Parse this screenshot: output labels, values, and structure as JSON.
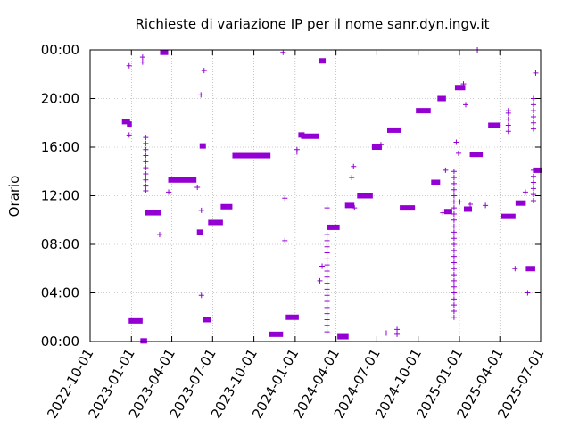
{
  "chart_data": {
    "type": "scatter",
    "title": "Richieste di variazione IP per il nome sanr.dyn.ingv.it",
    "ylabel": "Orario",
    "xlabel": "",
    "x_type": "date",
    "xlim": [
      "2022-10-01",
      "2025-07-01"
    ],
    "ylim": [
      0,
      24
    ],
    "x_ticks": [
      "2022-10-01",
      "2023-01-01",
      "2023-04-01",
      "2023-07-01",
      "2023-10-01",
      "2024-01-01",
      "2024-04-01",
      "2024-07-01",
      "2024-10-01",
      "2025-01-01",
      "2025-04-01",
      "2025-07-01"
    ],
    "y_ticks": [
      {
        "value": 0,
        "label": "00:00"
      },
      {
        "value": 4,
        "label": "04:00"
      },
      {
        "value": 8,
        "label": "08:00"
      },
      {
        "value": 12,
        "label": "12:00"
      },
      {
        "value": 16,
        "label": "16:00"
      },
      {
        "value": 20,
        "label": "20:00"
      },
      {
        "value": 24,
        "label": "00:00"
      }
    ],
    "grid": true,
    "marker": "plus",
    "color": "#9400d3",
    "segments": [
      {
        "x1": "2022-12-15",
        "x2": "2022-12-25",
        "y": 18.1
      },
      {
        "x1": "2022-12-26",
        "x2": "2022-12-29",
        "y": 17.9
      },
      {
        "x1": "2022-12-30",
        "x2": "2023-01-22",
        "y": 1.7
      },
      {
        "x1": "2023-01-25",
        "x2": "2023-02-01",
        "y": 0.05
      },
      {
        "x1": "2023-02-05",
        "x2": "2023-03-05",
        "y": 10.6
      },
      {
        "x1": "2023-03-10",
        "x2": "2023-03-20",
        "y": 23.8
      },
      {
        "x1": "2023-03-28",
        "x2": "2023-05-22",
        "y": 13.3
      },
      {
        "x1": "2023-05-31",
        "x2": "2023-06-05",
        "y": 9.0
      },
      {
        "x1": "2023-06-06",
        "x2": "2023-06-12",
        "y": 16.1
      },
      {
        "x1": "2023-06-14",
        "x2": "2023-06-24",
        "y": 1.8
      },
      {
        "x1": "2023-06-25",
        "x2": "2023-07-20",
        "y": 9.8
      },
      {
        "x1": "2023-07-23",
        "x2": "2023-08-10",
        "y": 11.1
      },
      {
        "x1": "2023-08-18",
        "x2": "2023-11-03",
        "y": 15.3
      },
      {
        "x1": "2023-11-08",
        "x2": "2023-12-01",
        "y": 0.6
      },
      {
        "x1": "2023-12-15",
        "x2": "2024-01-05",
        "y": 2.0
      },
      {
        "x1": "2024-01-12",
        "x2": "2024-01-18",
        "y": 17.0
      },
      {
        "x1": "2024-01-18",
        "x2": "2024-02-20",
        "y": 16.9
      },
      {
        "x1": "2024-02-27",
        "x2": "2024-03-05",
        "y": 23.1
      },
      {
        "x1": "2024-03-15",
        "x2": "2024-04-05",
        "y": 9.4
      },
      {
        "x1": "2024-04-08",
        "x2": "2024-04-25",
        "y": 0.4
      },
      {
        "x1": "2024-04-25",
        "x2": "2024-05-08",
        "y": 11.2
      },
      {
        "x1": "2024-05-22",
        "x2": "2024-06-18",
        "y": 12.0
      },
      {
        "x1": "2024-06-24",
        "x2": "2024-07-08",
        "y": 16.0
      },
      {
        "x1": "2024-07-28",
        "x2": "2024-08-20",
        "y": 17.4
      },
      {
        "x1": "2024-08-25",
        "x2": "2024-09-20",
        "y": 11.0
      },
      {
        "x1": "2024-09-30",
        "x2": "2024-10-25",
        "y": 19.0
      },
      {
        "x1": "2024-11-03",
        "x2": "2024-11-15",
        "y": 13.1
      },
      {
        "x1": "2024-11-17",
        "x2": "2024-11-28",
        "y": 20.0
      },
      {
        "x1": "2024-12-02",
        "x2": "2024-12-12",
        "y": 10.7
      },
      {
        "x1": "2024-12-26",
        "x2": "2025-01-10",
        "y": 20.9
      },
      {
        "x1": "2025-01-15",
        "x2": "2025-01-25",
        "y": 10.9
      },
      {
        "x1": "2025-01-28",
        "x2": "2025-02-18",
        "y": 15.4
      },
      {
        "x1": "2025-03-10",
        "x2": "2025-03-28",
        "y": 17.8
      },
      {
        "x1": "2025-04-08",
        "x2": "2025-05-02",
        "y": 10.3
      },
      {
        "x1": "2025-05-10",
        "x2": "2025-05-25",
        "y": 11.4
      },
      {
        "x1": "2025-06-02",
        "x2": "2025-06-15",
        "y": 6.0
      },
      {
        "x1": "2025-06-18",
        "x2": "2025-07-01",
        "y": 14.1
      }
    ],
    "columns": [
      {
        "x": "2023-02-02",
        "ys": [
          12.4,
          12.8,
          13.3,
          13.8,
          14.3,
          14.8,
          15.3,
          15.8,
          16.3,
          16.8
        ]
      },
      {
        "x": "2024-03-12",
        "ys": [
          0.8,
          1.3,
          1.8,
          2.3,
          2.8,
          3.3,
          3.8,
          4.3,
          4.8,
          5.3,
          5.8,
          6.3,
          6.8,
          7.3,
          7.8,
          8.3,
          8.8
        ]
      },
      {
        "x": "2024-12-20",
        "ys": [
          2.0,
          2.5,
          3.0,
          3.5,
          4.0,
          4.5,
          5.0,
          5.5,
          6.0,
          6.5,
          7.0,
          7.5,
          8.0,
          8.5,
          9.0,
          9.5,
          10.0,
          10.5,
          11.0,
          11.5,
          12.0,
          12.5,
          13.0,
          13.5,
          14.0
        ]
      },
      {
        "x": "2025-06-15",
        "ys": [
          11.6,
          12.1,
          12.6,
          13.1,
          13.6,
          14.1,
          17.5,
          18.0,
          18.5,
          19.0,
          19.5,
          20.0
        ]
      },
      {
        "x": "2025-04-20",
        "ys": [
          17.3,
          17.8,
          18.3,
          18.8,
          19.0
        ]
      }
    ],
    "points": [
      {
        "x": "2022-12-27",
        "y": 17.0
      },
      {
        "x": "2022-12-27",
        "y": 22.7
      },
      {
        "x": "2023-01-26",
        "y": 23.0
      },
      {
        "x": "2023-01-26",
        "y": 23.4
      },
      {
        "x": "2023-03-05",
        "y": 8.8
      },
      {
        "x": "2023-03-25",
        "y": 12.3
      },
      {
        "x": "2023-05-28",
        "y": 12.7
      },
      {
        "x": "2023-06-05",
        "y": 20.3
      },
      {
        "x": "2023-06-06",
        "y": 10.8
      },
      {
        "x": "2023-06-06",
        "y": 3.8
      },
      {
        "x": "2023-06-12",
        "y": 22.3
      },
      {
        "x": "2023-12-05",
        "y": 23.8
      },
      {
        "x": "2023-12-09",
        "y": 11.8
      },
      {
        "x": "2023-12-09",
        "y": 8.3
      },
      {
        "x": "2024-01-05",
        "y": 15.8
      },
      {
        "x": "2024-01-05",
        "y": 15.6
      },
      {
        "x": "2024-02-25",
        "y": 5.0
      },
      {
        "x": "2024-03-01",
        "y": 6.2
      },
      {
        "x": "2024-03-12",
        "y": 11.0
      },
      {
        "x": "2024-05-06",
        "y": 13.5
      },
      {
        "x": "2024-05-10",
        "y": 14.4
      },
      {
        "x": "2024-05-12",
        "y": 11.0
      },
      {
        "x": "2024-07-10",
        "y": 16.2
      },
      {
        "x": "2024-07-22",
        "y": 0.7
      },
      {
        "x": "2024-08-15",
        "y": 0.6
      },
      {
        "x": "2024-08-15",
        "y": 1.0
      },
      {
        "x": "2024-11-25",
        "y": 10.6
      },
      {
        "x": "2024-12-01",
        "y": 14.1
      },
      {
        "x": "2024-12-25",
        "y": 16.4
      },
      {
        "x": "2024-12-30",
        "y": 15.5
      },
      {
        "x": "2025-01-10",
        "y": 21.2
      },
      {
        "x": "2025-01-15",
        "y": 19.5
      },
      {
        "x": "2025-01-25",
        "y": 11.3
      },
      {
        "x": "2025-01-02",
        "y": 11.5
      },
      {
        "x": "2025-02-28",
        "y": 11.2
      },
      {
        "x": "2025-02-10",
        "y": 24.0
      },
      {
        "x": "2025-05-05",
        "y": 6.0
      },
      {
        "x": "2025-05-28",
        "y": 12.3
      },
      {
        "x": "2025-06-02",
        "y": 4.0
      },
      {
        "x": "2025-06-20",
        "y": 22.1
      }
    ]
  }
}
